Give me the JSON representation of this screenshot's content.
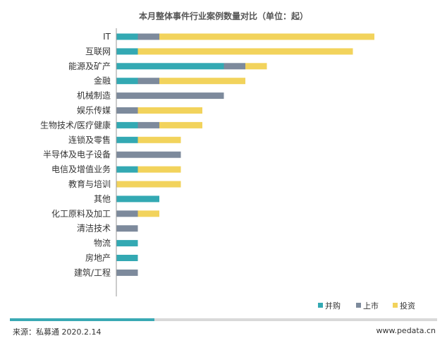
{
  "colors": {
    "merger": "#33a9b3",
    "ipo": "#7d8a9c",
    "investment": "#f2d35c"
  },
  "chart_data": {
    "type": "bar",
    "orientation": "horizontal",
    "stacked": true,
    "title": "本月整体事件行业案例数量对比（单位：起）",
    "categories": [
      "IT",
      "互联网",
      "能源及矿产",
      "金融",
      "机械制造",
      "娱乐传媒",
      "生物技术/医疗健康",
      "连锁及零售",
      "半导体及电子设备",
      "电信及增值业务",
      "教育与培训",
      "其他",
      "化工原料及加工",
      "清洁技术",
      "物流",
      "房地产",
      "建筑/工程"
    ],
    "series": [
      {
        "name": "并购",
        "color": "#33a9b3",
        "values": [
          1,
          1,
          5,
          1,
          0,
          0,
          1,
          1,
          0,
          1,
          0,
          2,
          0,
          0,
          1,
          1,
          0
        ]
      },
      {
        "name": "上市",
        "color": "#7d8a9c",
        "values": [
          1,
          0,
          1,
          1,
          5,
          1,
          1,
          0,
          3,
          0,
          0,
          0,
          1,
          1,
          0,
          0,
          1
        ]
      },
      {
        "name": "投资",
        "color": "#f2d35c",
        "values": [
          10,
          10,
          1,
          4,
          0,
          3,
          2,
          2,
          0,
          2,
          3,
          0,
          1,
          0,
          0,
          0,
          0
        ]
      }
    ],
    "legend_position": "bottom-right",
    "grid": false
  },
  "footer": {
    "source": "来源：私募通 2020.2.14",
    "website": "www.pedata.cn"
  }
}
